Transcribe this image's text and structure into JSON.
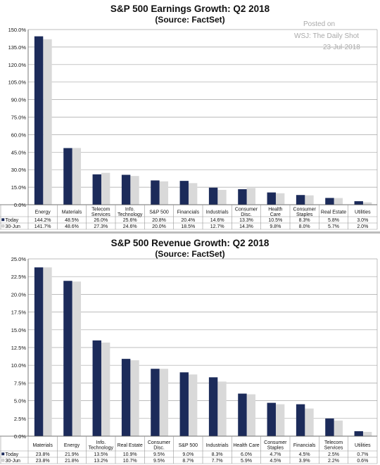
{
  "watermark": {
    "line1": "Posted on",
    "line2": "WSJ: The Daily Shot",
    "line3": "23-Jul-2018"
  },
  "colors": {
    "today": "#1c2b5a",
    "prior": "#d9d9d9",
    "grid": "#a6a6a6"
  },
  "chart_data": [
    {
      "type": "bar",
      "title": "S&P 500 Earnings Growth: Q2 2018",
      "subtitle": "(Source: FactSet)",
      "categories": [
        "Energy",
        "Materials",
        "Telecom Services",
        "Info. Technology",
        "S&P 500",
        "Financials",
        "Industrials",
        "Consumer Disc.",
        "Health Care",
        "Consumer Staples",
        "Real Estate",
        "Utilities"
      ],
      "category_lines": [
        [
          "Energy"
        ],
        [
          "Materials"
        ],
        [
          "Telecom",
          "Services"
        ],
        [
          "Info.",
          "Technology"
        ],
        [
          "S&P 500"
        ],
        [
          "Financials"
        ],
        [
          "Industrials"
        ],
        [
          "Consumer",
          "Disc."
        ],
        [
          "Health",
          "Care"
        ],
        [
          "Consumer",
          "Staples"
        ],
        [
          "Real Estate"
        ],
        [
          "Utilities"
        ]
      ],
      "series": [
        {
          "name": "Today",
          "values": [
            144.2,
            48.5,
            26.0,
            25.6,
            20.8,
            20.4,
            14.6,
            13.3,
            10.5,
            8.3,
            5.8,
            3.0
          ],
          "labels": [
            "144.2%",
            "48.5%",
            "26.0%",
            "25.6%",
            "20.8%",
            "20.4%",
            "14.6%",
            "13.3%",
            "10.5%",
            "8.3%",
            "5.8%",
            "3.0%"
          ]
        },
        {
          "name": "30-Jun",
          "values": [
            141.7,
            48.6,
            27.3,
            24.6,
            20.0,
            18.5,
            12.7,
            14.3,
            9.8,
            8.0,
            5.7,
            2.0
          ],
          "labels": [
            "141.7%",
            "48.6%",
            "27.3%",
            "24.6%",
            "20.0%",
            "18.5%",
            "12.7%",
            "14.3%",
            "9.8%",
            "8.0%",
            "5.7%",
            "2.0%"
          ]
        }
      ],
      "ylim": [
        0,
        150
      ],
      "yticks": [
        0,
        15,
        30,
        45,
        60,
        75,
        90,
        105,
        120,
        135,
        150
      ],
      "ytick_labels": [
        "0.0%",
        "15.0%",
        "30.0%",
        "45.0%",
        "60.0%",
        "75.0%",
        "90.0%",
        "105.0%",
        "120.0%",
        "135.0%",
        "150.0%"
      ],
      "grid": true,
      "legend": "table rows below chart"
    },
    {
      "type": "bar",
      "title": "S&P 500 Revenue Growth: Q2 2018",
      "subtitle": "(Source: FactSet)",
      "categories": [
        "Materials",
        "Energy",
        "Info. Technology",
        "Real Estate",
        "Consumer Disc.",
        "S&P 500",
        "Industrials",
        "Health Care",
        "Consumer Staples",
        "Financials",
        "Telecom Services",
        "Utilities"
      ],
      "category_lines": [
        [
          "Materials"
        ],
        [
          "Energy"
        ],
        [
          "Info.",
          "Technology"
        ],
        [
          "Real Estate"
        ],
        [
          "Consumer",
          "Disc."
        ],
        [
          "S&P 500"
        ],
        [
          "Industrials"
        ],
        [
          "Health Care"
        ],
        [
          "Consumer",
          "Staples"
        ],
        [
          "Financials"
        ],
        [
          "Telecom",
          "Services"
        ],
        [
          "Utilities"
        ]
      ],
      "series": [
        {
          "name": "Today",
          "values": [
            23.8,
            21.9,
            13.5,
            10.9,
            9.5,
            9.0,
            8.3,
            6.0,
            4.7,
            4.5,
            2.5,
            0.7
          ],
          "labels": [
            "23.8%",
            "21.9%",
            "13.5%",
            "10.9%",
            "9.5%",
            "9.0%",
            "8.3%",
            "6.0%",
            "4.7%",
            "4.5%",
            "2.5%",
            "0.7%"
          ]
        },
        {
          "name": "30-Jun",
          "values": [
            23.8,
            21.8,
            13.2,
            10.7,
            9.5,
            8.7,
            7.7,
            5.9,
            4.5,
            3.9,
            2.2,
            0.6
          ],
          "labels": [
            "23.8%",
            "21.8%",
            "13.2%",
            "10.7%",
            "9.5%",
            "8.7%",
            "7.7%",
            "5.9%",
            "4.5%",
            "3.9%",
            "2.2%",
            "0.6%"
          ]
        }
      ],
      "ylim": [
        0,
        25
      ],
      "yticks": [
        0,
        2.5,
        5,
        7.5,
        10,
        12.5,
        15,
        17.5,
        20,
        22.5,
        25
      ],
      "ytick_labels": [
        "0.0%",
        "2.5%",
        "5.0%",
        "7.5%",
        "10.0%",
        "12.5%",
        "15.0%",
        "17.5%",
        "20.0%",
        "22.5%",
        "25.0%"
      ],
      "grid": true,
      "legend": "table rows below chart"
    }
  ]
}
